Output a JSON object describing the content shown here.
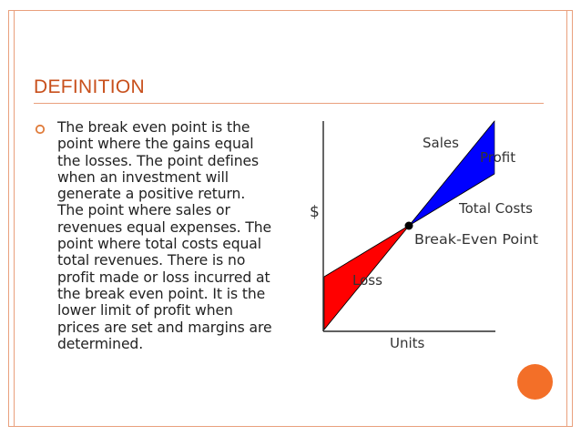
{
  "slide": {
    "title": "DEFINITION",
    "bullet_icon": "hollow-circle-bullet",
    "body_lines": [
      "The break even point  is the",
      "point where the gains equal",
      "the losses. The point defines",
      "when an investment will",
      "generate a positive return.",
      "The point where sales or",
      "revenues equal expenses. The",
      "point where total costs equal",
      "total revenues. There is no",
      "profit made or loss incurred at",
      "the break even point. It is the",
      "lower limit of profit when",
      "prices are set and margins are",
      "determined."
    ],
    "accent_color": "#e9a07d",
    "title_color": "#c8501c",
    "decor_circle_color": "#f36f28"
  },
  "chart_data": {
    "type": "line",
    "title": "",
    "xlabel": "Units",
    "ylabel": "$",
    "series": [
      {
        "name": "Sales",
        "x": [
          0,
          1
        ],
        "y": [
          0,
          1
        ],
        "color": "#000000"
      },
      {
        "name": "Total Costs",
        "x": [
          0,
          1
        ],
        "y": [
          0.35,
          0.68
        ],
        "color": "#000000"
      }
    ],
    "regions": [
      {
        "label": "Loss",
        "color": "#ff0000"
      },
      {
        "label": "Profit",
        "color": "#0000ff"
      }
    ],
    "annotations": [
      {
        "label": "Break-Even Point"
      }
    ],
    "grid": false,
    "legend": "none"
  }
}
